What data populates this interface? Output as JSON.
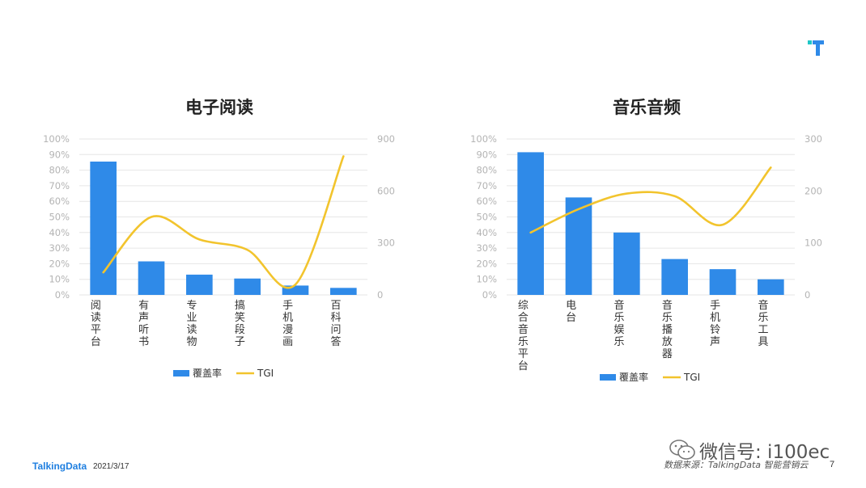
{
  "chart_data": [
    {
      "type": "bar+line",
      "title": "电子阅读",
      "categories": [
        "阅读平台",
        "有声听书",
        "专业读物",
        "搞笑段子",
        "手机漫画",
        "百科问答"
      ],
      "series": [
        {
          "name": "覆盖率",
          "type": "bar",
          "axis": "left",
          "values": [
            0.855,
            0.215,
            0.13,
            0.105,
            0.06,
            0.045
          ]
        },
        {
          "name": "TGI",
          "type": "line",
          "axis": "right",
          "smooth": true,
          "values": [
            130,
            450,
            320,
            260,
            60,
            800
          ]
        }
      ],
      "y_left": {
        "min": 0,
        "max": 1,
        "ticks": [
          "0%",
          "10%",
          "20%",
          "30%",
          "40%",
          "50%",
          "60%",
          "70%",
          "80%",
          "90%",
          "100%"
        ]
      },
      "y_right": {
        "min": 0,
        "max": 900,
        "ticks": [
          "0",
          "300",
          "600",
          "900"
        ]
      },
      "colors": {
        "bar": "#2f8ae8",
        "line": "#f2c42d"
      },
      "legend_position": "bottom"
    },
    {
      "type": "bar+line",
      "title": "音乐音频",
      "categories": [
        "综合音乐平台",
        "电台",
        "音乐娱乐",
        "音乐播放器",
        "手机铃声",
        "音乐工具"
      ],
      "series": [
        {
          "name": "覆盖率",
          "type": "bar",
          "axis": "left",
          "values": [
            0.915,
            0.625,
            0.4,
            0.23,
            0.165,
            0.1
          ]
        },
        {
          "name": "TGI",
          "type": "line",
          "axis": "right",
          "smooth": true,
          "values": [
            120,
            165,
            195,
            190,
            135,
            245
          ]
        }
      ],
      "y_left": {
        "min": 0,
        "max": 1,
        "ticks": [
          "0%",
          "10%",
          "20%",
          "30%",
          "40%",
          "50%",
          "60%",
          "70%",
          "80%",
          "90%",
          "100%"
        ]
      },
      "y_right": {
        "min": 0,
        "max": 300,
        "ticks": [
          "0",
          "100",
          "200",
          "300"
        ]
      },
      "colors": {
        "bar": "#2f8ae8",
        "line": "#f2c42d"
      },
      "legend_position": "bottom"
    }
  ],
  "footer": {
    "brand": "TalkingData",
    "date": "2021/3/17",
    "source": "数据来源：TalkingData 智能营销云",
    "page_number": "7"
  },
  "watermark": {
    "text": "微信号: i100ec",
    "icon": "wechat-icon"
  },
  "logo": {
    "icon": "talkingdata-t-logo",
    "colors": [
      "#1fc7c7",
      "#2f8ae8"
    ]
  }
}
